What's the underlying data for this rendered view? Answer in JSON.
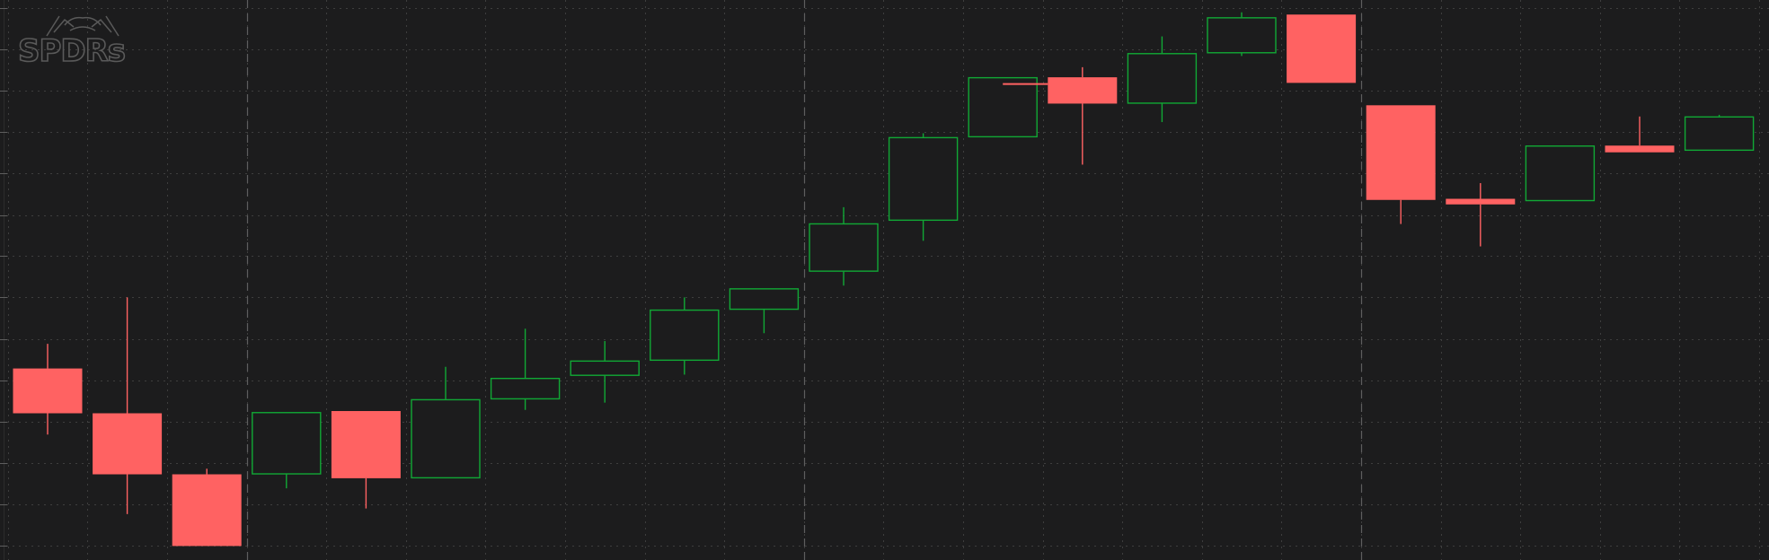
{
  "watermark": {
    "text": "SPDRs",
    "color": "#5a5a5a"
  },
  "colors": {
    "background": "#1c1c1d",
    "up": "#11a835",
    "down": "#ff6262",
    "grid_dotted": "#3e3e3e",
    "grid_dashed": "#5e5e5e"
  },
  "chart_data": {
    "type": "candlestick",
    "ylim": [
      0,
      1000
    ],
    "grid": true,
    "horizontal_gridlines": [
      25,
      99,
      173,
      247,
      321,
      395,
      469,
      543,
      616,
      690,
      764,
      838,
      912,
      986
    ],
    "period_separators_after_candle": [
      2,
      9,
      16
    ],
    "candles": [
      {
        "direction": "down",
        "open": 342,
        "close": 262,
        "high": 386,
        "low": 224
      },
      {
        "direction": "down",
        "open": 262,
        "close": 153,
        "high": 469,
        "low": 82
      },
      {
        "direction": "down",
        "open": 153,
        "close": 25,
        "high": 163,
        "low": 25
      },
      {
        "direction": "up",
        "open": 153,
        "close": 264,
        "high": 264,
        "low": 128
      },
      {
        "direction": "down",
        "open": 266,
        "close": 146,
        "high": 266,
        "low": 92
      },
      {
        "direction": "up",
        "open": 146,
        "close": 287,
        "high": 345,
        "low": 146
      },
      {
        "direction": "up",
        "open": 287,
        "close": 325,
        "high": 413,
        "low": 268
      },
      {
        "direction": "up",
        "open": 329,
        "close": 356,
        "high": 391,
        "low": 281
      },
      {
        "direction": "up",
        "open": 356,
        "close": 447,
        "high": 469,
        "low": 331
      },
      {
        "direction": "up",
        "open": 447,
        "close": 485,
        "high": 485,
        "low": 405
      },
      {
        "direction": "up",
        "open": 515,
        "close": 601,
        "high": 630,
        "low": 490
      },
      {
        "direction": "up",
        "open": 606,
        "close": 755,
        "high": 762,
        "low": 570
      },
      {
        "direction": "up",
        "open": 755,
        "close": 862,
        "high": 862,
        "low": 755
      },
      {
        "direction": "down",
        "open": 862,
        "close": 815,
        "high": 880,
        "low": 706
      },
      {
        "direction": "up",
        "open": 815,
        "close": 905,
        "high": 935,
        "low": 782
      },
      {
        "direction": "up",
        "open": 905,
        "close": 969,
        "high": 978,
        "low": 900
      },
      {
        "direction": "down",
        "open": 974,
        "close": 852,
        "high": 974,
        "low": 852
      },
      {
        "direction": "down",
        "open": 812,
        "close": 643,
        "high": 812,
        "low": 600
      },
      {
        "direction": "down",
        "open": 645,
        "close": 635,
        "high": 673,
        "low": 560
      },
      {
        "direction": "up",
        "open": 641,
        "close": 740,
        "high": 740,
        "low": 641
      },
      {
        "direction": "down",
        "open": 740,
        "close": 728,
        "high": 792,
        "low": 728
      },
      {
        "direction": "up",
        "open": 731,
        "close": 792,
        "high": 795,
        "low": 731
      }
    ]
  }
}
